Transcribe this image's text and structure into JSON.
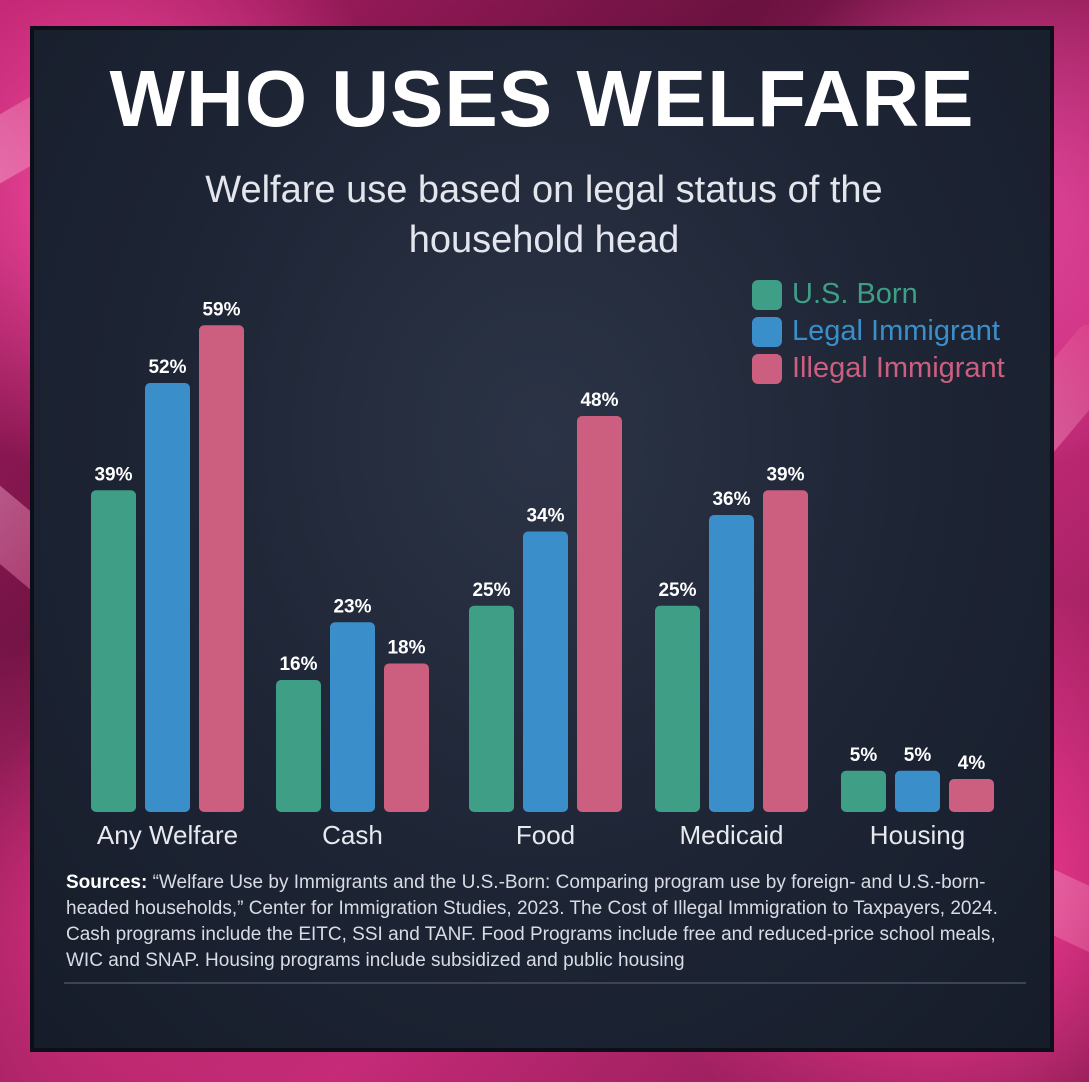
{
  "title": "WHO USES WELFARE",
  "subtitle": "Welfare use based on legal status of the household head",
  "colors": {
    "us_born": "#3e9e86",
    "legal_immigrant": "#3a8fca",
    "illegal_immigrant": "#cc5f7f"
  },
  "chart_data": {
    "type": "bar",
    "title": "WHO USES WELFARE",
    "subtitle": "Welfare use based on legal status of the household head",
    "categories": [
      "Any Welfare",
      "Cash",
      "Food",
      "Medicaid",
      "Housing"
    ],
    "series": [
      {
        "name": "U.S. Born",
        "values": [
          39,
          16,
          25,
          25,
          5
        ],
        "labels": [
          "39%",
          "16%",
          "25%",
          "25%",
          "5%"
        ]
      },
      {
        "name": "Legal Immigrant",
        "values": [
          52,
          23,
          34,
          36,
          5
        ],
        "labels": [
          "52%",
          "23%",
          "34%",
          "36%",
          "5%"
        ]
      },
      {
        "name": "Illegal Immigrant",
        "values": [
          59,
          18,
          48,
          39,
          4
        ],
        "labels": [
          "59%",
          "18%",
          "48%",
          "39%",
          "4%"
        ]
      }
    ],
    "xlabel": "",
    "ylabel": "",
    "ylim": [
      0,
      59
    ],
    "grid": false,
    "legend_position": "top-right"
  },
  "sources": {
    "label": "Sources:",
    "text": " “Welfare Use by Immigrants and the U.S.-Born: Comparing program use by foreign- and U.S.-born-headed households,” Center for Immigration Studies, 2023. The Cost of Illegal Immigration to Taxpayers, 2024. Cash programs include the EITC, SSI and TANF. Food Programs include free and reduced-price school meals, WIC and SNAP. Housing programs include subsidized and public housing"
  }
}
